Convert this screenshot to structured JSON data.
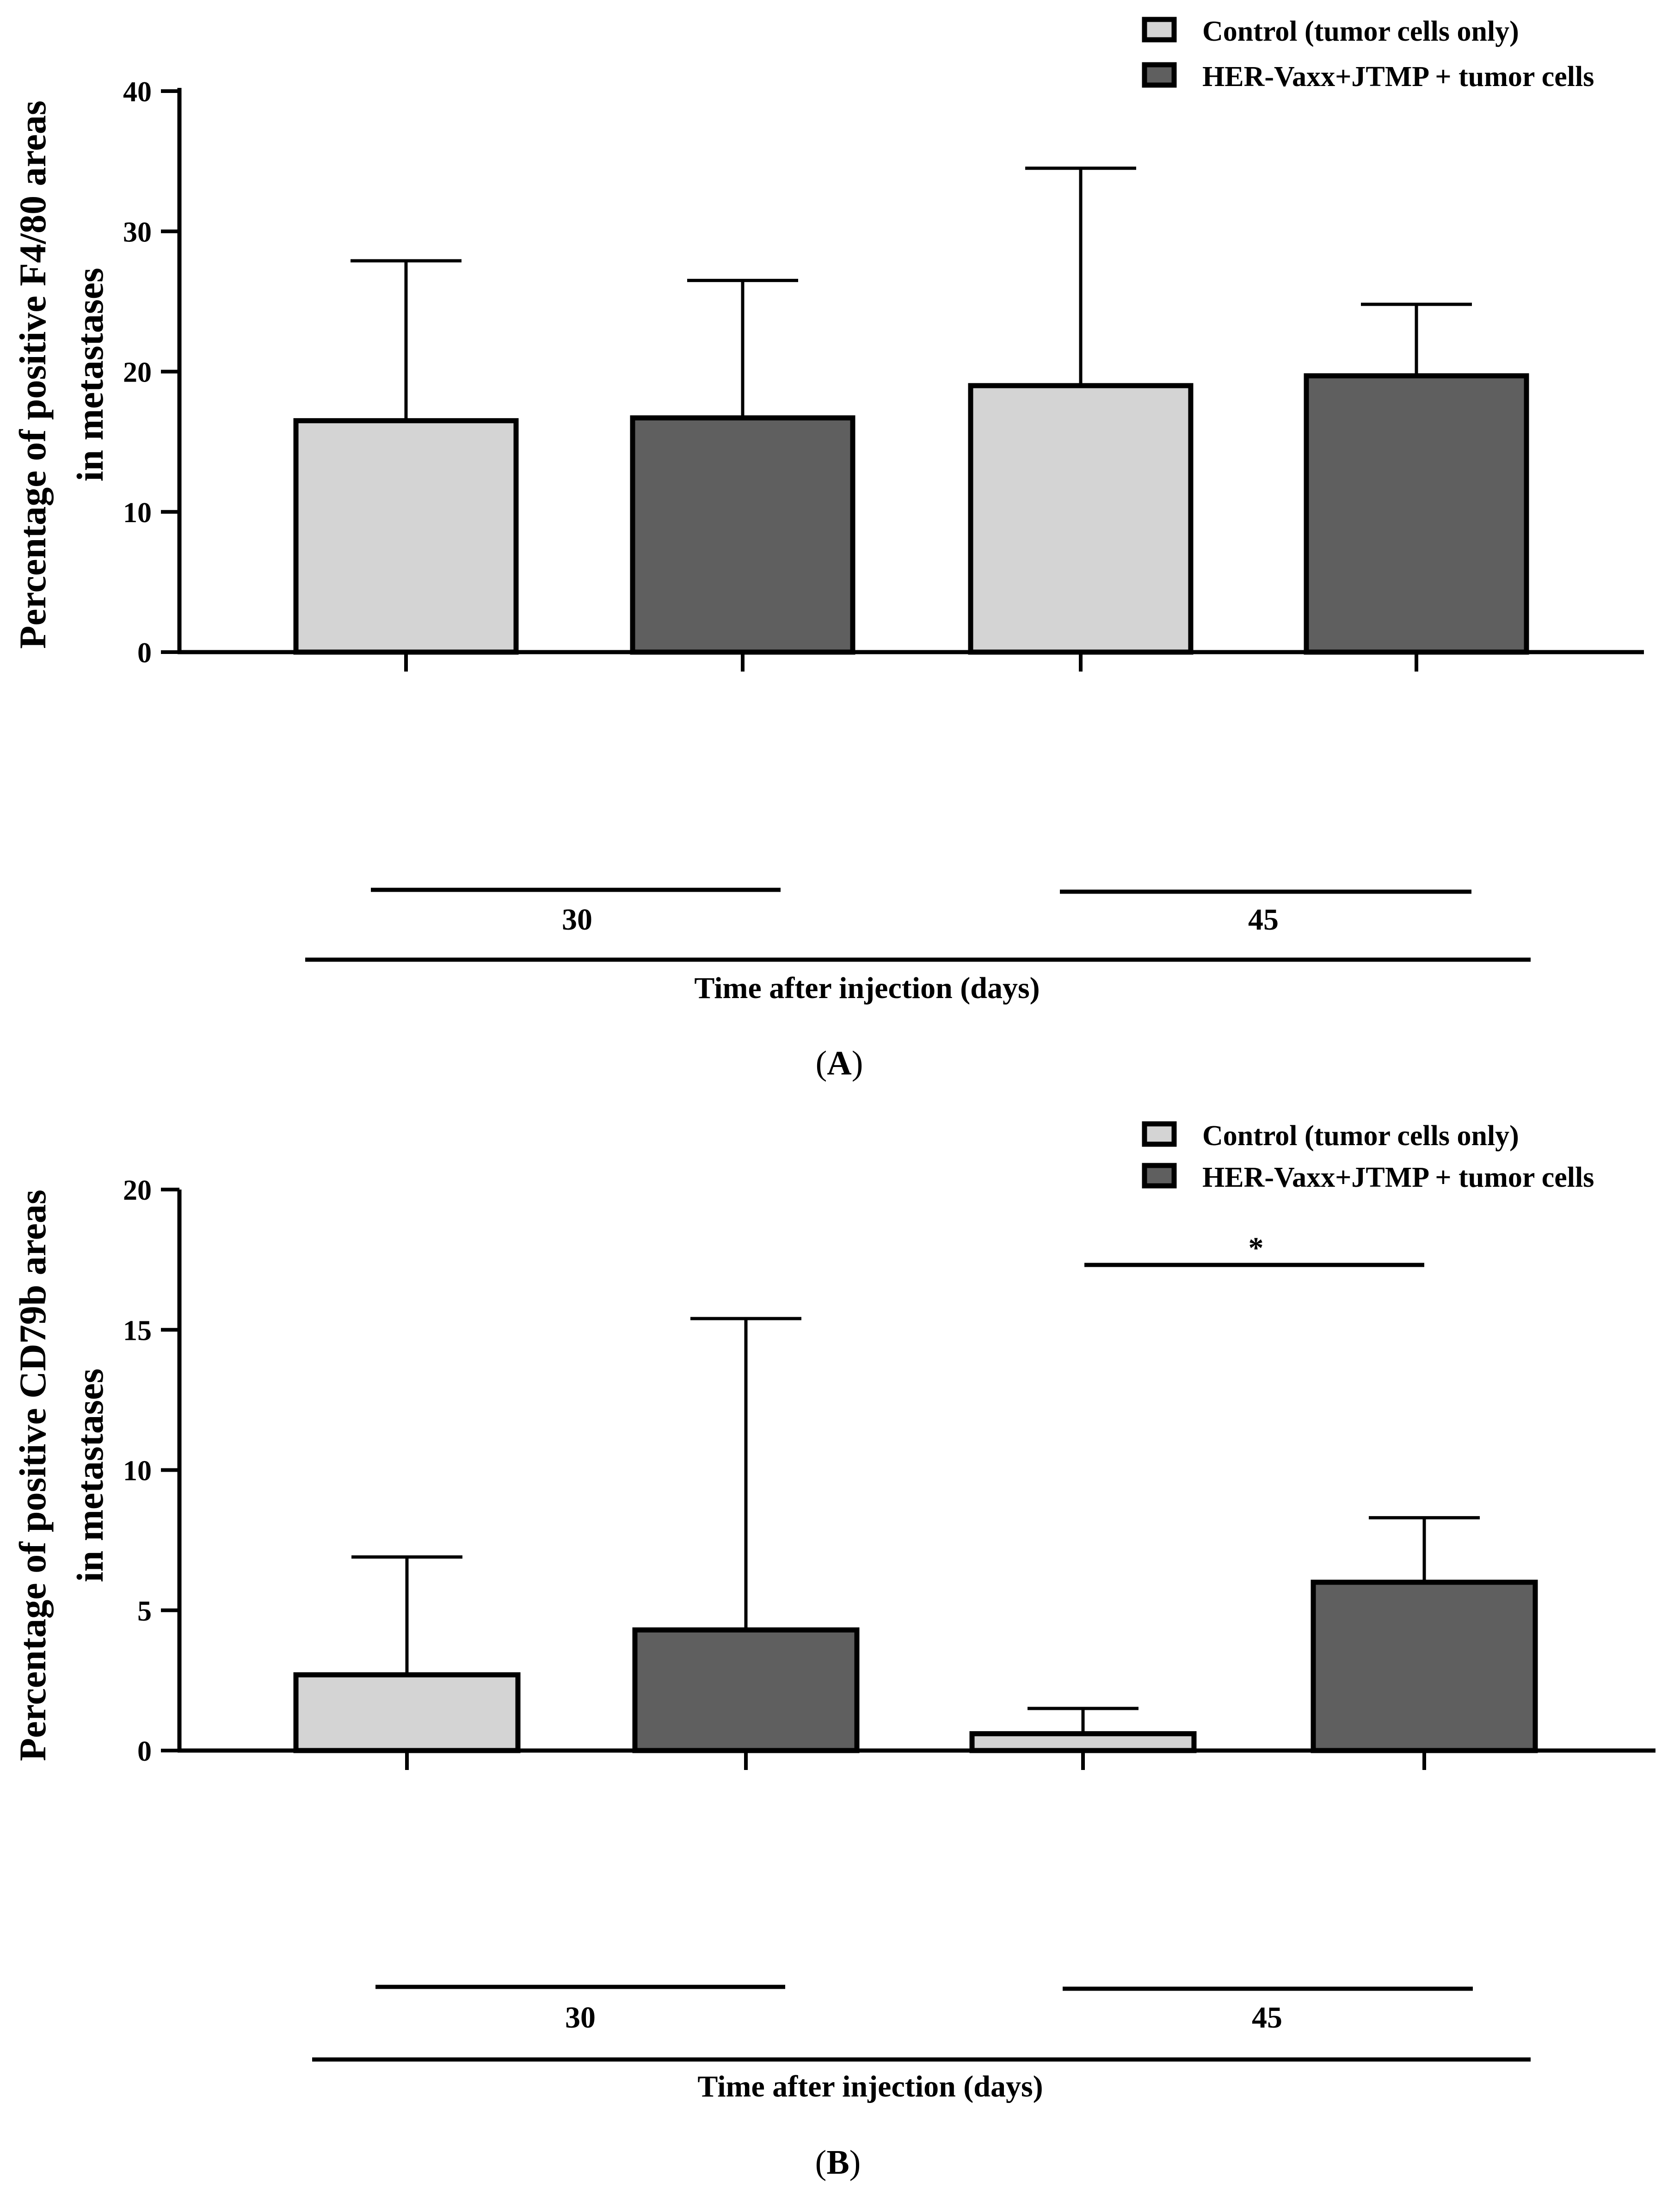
{
  "chart_data": [
    {
      "type": "bar",
      "panel_label": "A",
      "ylabel_line1": "Percentage of positive F4/80 areas",
      "ylabel_line2": "in metastases",
      "xlabel": "Time after injection (days)",
      "ylim": [
        0,
        40
      ],
      "yticks": [
        "0",
        "10",
        "20",
        "30",
        "40"
      ],
      "categories": [
        "30",
        "45"
      ],
      "series": [
        {
          "name": "Control (tumor cells only)",
          "color": "#d4d4d4",
          "values": [
            16.5,
            19.0
          ],
          "errors": [
            11.4,
            15.5
          ]
        },
        {
          "name": "HER-Vaxx+JTMP + tumor cells",
          "color": "#5f5f5f",
          "values": [
            16.7,
            19.7
          ],
          "errors": [
            9.8,
            5.1
          ]
        }
      ],
      "annotations": []
    },
    {
      "type": "bar",
      "panel_label": "B",
      "ylabel_line1": "Percentage of positive CD79b areas",
      "ylabel_line2": "in metastases",
      "xlabel": "Time after injection (days)",
      "ylim": [
        0,
        20
      ],
      "yticks": [
        "0",
        "5",
        "10",
        "15",
        "20"
      ],
      "categories": [
        "30",
        "45"
      ],
      "series": [
        {
          "name": "Control (tumor cells only)",
          "color": "#d4d4d4",
          "values": [
            2.7,
            0.6
          ],
          "errors": [
            4.2,
            0.9
          ]
        },
        {
          "name": "HER-Vaxx+JTMP + tumor cells",
          "color": "#5f5f5f",
          "values": [
            4.3,
            6.0
          ],
          "errors": [
            11.1,
            2.3
          ]
        }
      ],
      "annotations": [
        {
          "text": "*",
          "group": "45"
        }
      ]
    }
  ]
}
